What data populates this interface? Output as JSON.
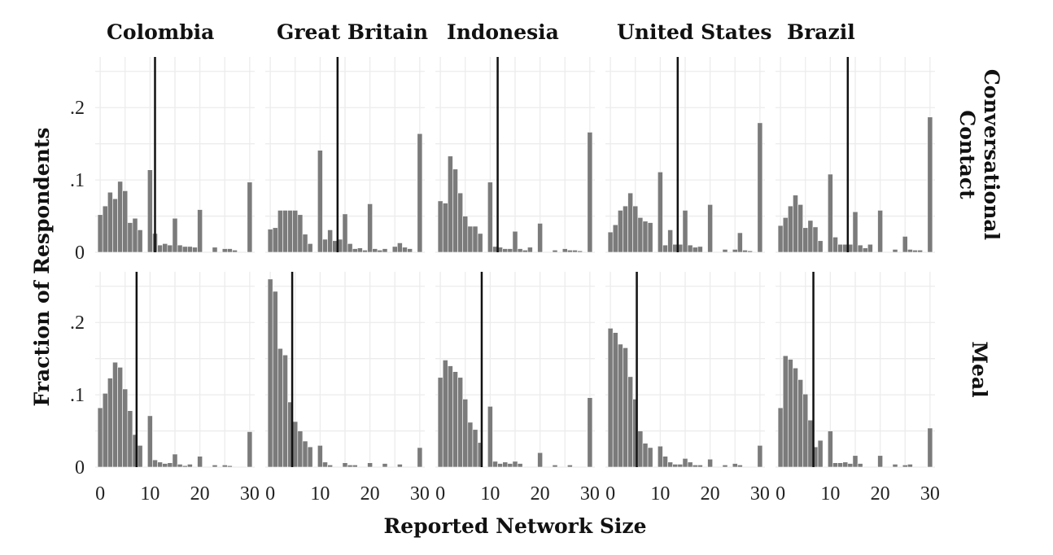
{
  "chart_data": {
    "type": "bar",
    "title": "",
    "xlabel": "Reported Network Size",
    "ylabel": "Fraction of Respondents",
    "xlim": [
      -1,
      31
    ],
    "ylim": [
      0,
      0.27
    ],
    "x_ticks": [
      0,
      10,
      20,
      30
    ],
    "x_tick_labels": [
      "0",
      "10",
      "20",
      "30"
    ],
    "y_ticks": [
      0,
      0.1,
      0.2
    ],
    "y_tick_labels": [
      "0",
      ".1",
      ".2"
    ],
    "grid": true,
    "bins": [
      0,
      1,
      2,
      3,
      4,
      5,
      6,
      7,
      8,
      9,
      10,
      11,
      12,
      13,
      14,
      15,
      16,
      17,
      18,
      19,
      20,
      21,
      22,
      23,
      24,
      25,
      26,
      27,
      28,
      29,
      30
    ],
    "columns": [
      "Colombia",
      "Great Britain",
      "Indonesia",
      "United States",
      "Brazil"
    ],
    "rows": [
      [
        "Conversational",
        "Contact"
      ],
      [
        "Meal"
      ]
    ],
    "panels": [
      {
        "row": 0,
        "col": 0,
        "mean": 11.0,
        "values": [
          0.052,
          0.064,
          0.083,
          0.074,
          0.098,
          0.085,
          0.041,
          0.047,
          0.031,
          0.0,
          0.114,
          0.026,
          0.01,
          0.012,
          0.01,
          0.047,
          0.01,
          0.008,
          0.008,
          0.007,
          0.059,
          0.0,
          0.0,
          0.007,
          0.0,
          0.005,
          0.005,
          0.003,
          0.0,
          0.0,
          0.097
        ]
      },
      {
        "row": 0,
        "col": 1,
        "mean": 13.5,
        "values": [
          0.032,
          0.034,
          0.058,
          0.058,
          0.058,
          0.058,
          0.052,
          0.025,
          0.012,
          0.0,
          0.141,
          0.018,
          0.031,
          0.016,
          0.018,
          0.053,
          0.012,
          0.005,
          0.006,
          0.003,
          0.067,
          0.005,
          0.003,
          0.005,
          0.0,
          0.008,
          0.013,
          0.007,
          0.005,
          0.0,
          0.164
        ]
      },
      {
        "row": 0,
        "col": 2,
        "mean": 11.5,
        "values": [
          0.071,
          0.068,
          0.133,
          0.115,
          0.082,
          0.05,
          0.036,
          0.036,
          0.026,
          0.0,
          0.097,
          0.008,
          0.007,
          0.005,
          0.005,
          0.029,
          0.005,
          0.003,
          0.007,
          0.0,
          0.04,
          0.0,
          0.0,
          0.003,
          0.0,
          0.005,
          0.003,
          0.003,
          0.002,
          0.0,
          0.166
        ]
      },
      {
        "row": 0,
        "col": 3,
        "mean": 13.5,
        "values": [
          0.028,
          0.038,
          0.058,
          0.064,
          0.082,
          0.064,
          0.048,
          0.043,
          0.041,
          0.0,
          0.111,
          0.01,
          0.031,
          0.011,
          0.011,
          0.058,
          0.01,
          0.007,
          0.008,
          0.0,
          0.066,
          0.0,
          0.0,
          0.004,
          0.0,
          0.004,
          0.027,
          0.003,
          0.002,
          0.0,
          0.179
        ]
      },
      {
        "row": 0,
        "col": 4,
        "mean": 13.5,
        "values": [
          0.037,
          0.048,
          0.064,
          0.079,
          0.066,
          0.034,
          0.044,
          0.035,
          0.016,
          0.0,
          0.108,
          0.021,
          0.011,
          0.011,
          0.011,
          0.056,
          0.01,
          0.006,
          0.011,
          0.0,
          0.058,
          0.0,
          0.0,
          0.004,
          0.0,
          0.022,
          0.004,
          0.003,
          0.003,
          0.0,
          0.187
        ]
      },
      {
        "row": 1,
        "col": 0,
        "mean": 7.3,
        "values": [
          0.082,
          0.102,
          0.123,
          0.145,
          0.138,
          0.108,
          0.078,
          0.045,
          0.03,
          0.0,
          0.071,
          0.01,
          0.007,
          0.005,
          0.006,
          0.018,
          0.004,
          0.002,
          0.004,
          0.0,
          0.015,
          0.0,
          0.0,
          0.003,
          0.0,
          0.003,
          0.002,
          0.0,
          0.0,
          0.0,
          0.049
        ]
      },
      {
        "row": 1,
        "col": 1,
        "mean": 4.4,
        "values": [
          0.26,
          0.243,
          0.164,
          0.155,
          0.09,
          0.063,
          0.05,
          0.036,
          0.028,
          0.0,
          0.03,
          0.007,
          0.003,
          0.0,
          0.0,
          0.006,
          0.003,
          0.003,
          0.0,
          0.0,
          0.006,
          0.0,
          0.0,
          0.005,
          0.0,
          0.0,
          0.004,
          0.0,
          0.0,
          0.0,
          0.027
        ]
      },
      {
        "row": 1,
        "col": 2,
        "mean": 8.3,
        "values": [
          0.124,
          0.148,
          0.14,
          0.132,
          0.124,
          0.094,
          0.062,
          0.052,
          0.034,
          0.0,
          0.084,
          0.008,
          0.005,
          0.007,
          0.005,
          0.008,
          0.005,
          0.0,
          0.0,
          0.0,
          0.02,
          0.0,
          0.0,
          0.003,
          0.0,
          0.0,
          0.003,
          0.0,
          0.0,
          0.0,
          0.096
        ]
      },
      {
        "row": 1,
        "col": 3,
        "mean": 5.3,
        "values": [
          0.192,
          0.186,
          0.17,
          0.165,
          0.125,
          0.094,
          0.05,
          0.033,
          0.027,
          0.0,
          0.029,
          0.015,
          0.007,
          0.004,
          0.004,
          0.012,
          0.007,
          0.003,
          0.003,
          0.0,
          0.011,
          0.0,
          0.0,
          0.003,
          0.0,
          0.005,
          0.003,
          0.0,
          0.0,
          0.0,
          0.03
        ]
      },
      {
        "row": 1,
        "col": 4,
        "mean": 6.6,
        "values": [
          0.082,
          0.154,
          0.149,
          0.137,
          0.121,
          0.101,
          0.065,
          0.028,
          0.037,
          0.0,
          0.05,
          0.006,
          0.006,
          0.007,
          0.005,
          0.016,
          0.005,
          0.0,
          0.0,
          0.0,
          0.016,
          0.0,
          0.0,
          0.004,
          0.0,
          0.003,
          0.004,
          0.0,
          0.0,
          0.0,
          0.054
        ]
      }
    ]
  }
}
